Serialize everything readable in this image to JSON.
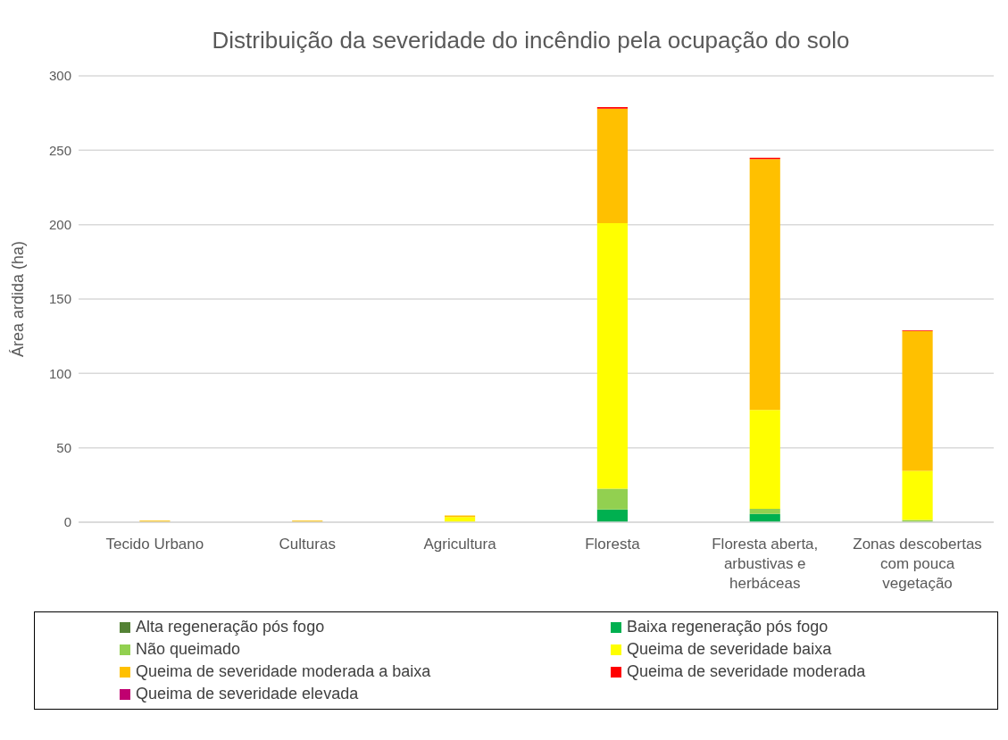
{
  "chart_data": {
    "type": "bar",
    "stacked": true,
    "title": "Distribuição da severidade do incêndio pela ocupação do solo",
    "ylabel": "Área ardida (ha)",
    "categories": [
      "Tecido Urbano",
      "Culturas",
      "Agricultura",
      "Floresta",
      "Floresta aberta, arbustivas e herbáceas",
      "Zonas descobertas com pouca vegetação"
    ],
    "series": [
      {
        "name": "Alta regeneração pós fogo",
        "color": "#548235",
        "values": [
          0,
          0,
          0,
          0,
          0,
          0
        ]
      },
      {
        "name": "Baixa regeneração pós fogo",
        "color": "#00b050",
        "values": [
          0,
          0,
          0,
          8.5,
          5.5,
          0
        ]
      },
      {
        "name": "Não queimado",
        "color": "#92d050",
        "values": [
          0,
          0,
          null,
          14,
          3.5,
          1.5
        ]
      },
      {
        "name": "Queima de severidade baixa",
        "color": "#ffff00",
        "values": [
          0,
          0,
          3.5,
          178.5,
          66.5,
          33
        ]
      },
      {
        "name": "Queima de severidade moderada a baixa",
        "color": "#ffc000",
        "values": [
          1,
          1,
          1,
          77,
          168.5,
          94
        ]
      },
      {
        "name": "Queima de severidade moderada",
        "color": "#ff0000",
        "values": [
          0,
          0,
          0,
          1,
          1,
          0.5
        ]
      },
      {
        "name": "Queima de severidade elevada",
        "color": "#c00070",
        "values": [
          0,
          0,
          0,
          0,
          0,
          0
        ]
      }
    ],
    "ylim": [
      0,
      300
    ],
    "yticks": [
      0,
      50,
      100,
      150,
      200,
      250,
      300
    ],
    "grid": "y",
    "legend": "bottom"
  }
}
